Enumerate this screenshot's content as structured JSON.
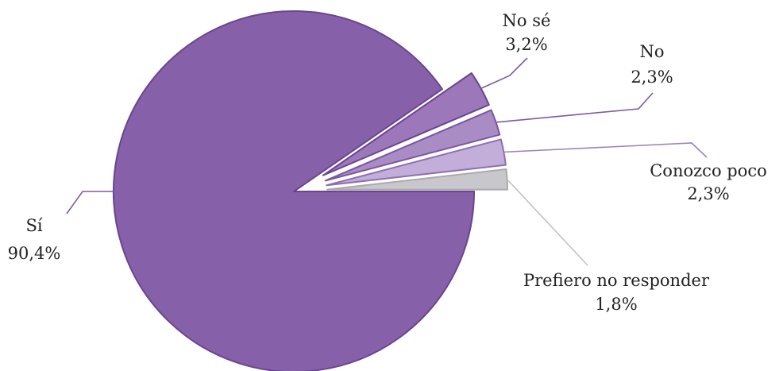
{
  "chart_data": {
    "type": "pie",
    "title": "",
    "slices": [
      {
        "label": "Sí",
        "value": 90.4,
        "value_label": "90,4%",
        "color": "#8660A8",
        "stroke": "#6A4590",
        "exploded": false
      },
      {
        "label": "No sé",
        "value": 3.2,
        "value_label": "3,2%",
        "color": "#9C78BA",
        "stroke": "#6A4590",
        "exploded": true
      },
      {
        "label": "No",
        "value": 2.3,
        "value_label": "2,3%",
        "color": "#A98CC4",
        "stroke": "#7A57A0",
        "exploded": true
      },
      {
        "label": "Conozco poco",
        "value": 2.3,
        "value_label": "2,3%",
        "color": "#C2AED8",
        "stroke": "#8E6EB2",
        "exploded": true
      },
      {
        "label": "Prefiero no responder",
        "value": 1.8,
        "value_label": "1,8%",
        "color": "#C8C8CC",
        "stroke": "#A9A9AE",
        "exploded": true
      }
    ],
    "leader_line_colors": {
      "Sí": "#7F5AA3",
      "No sé": "#7F5AA3",
      "No": "#7F5AA3",
      "Conozco poco": "#9C82BE",
      "Prefiero no responder": "#C2C2C6"
    }
  }
}
